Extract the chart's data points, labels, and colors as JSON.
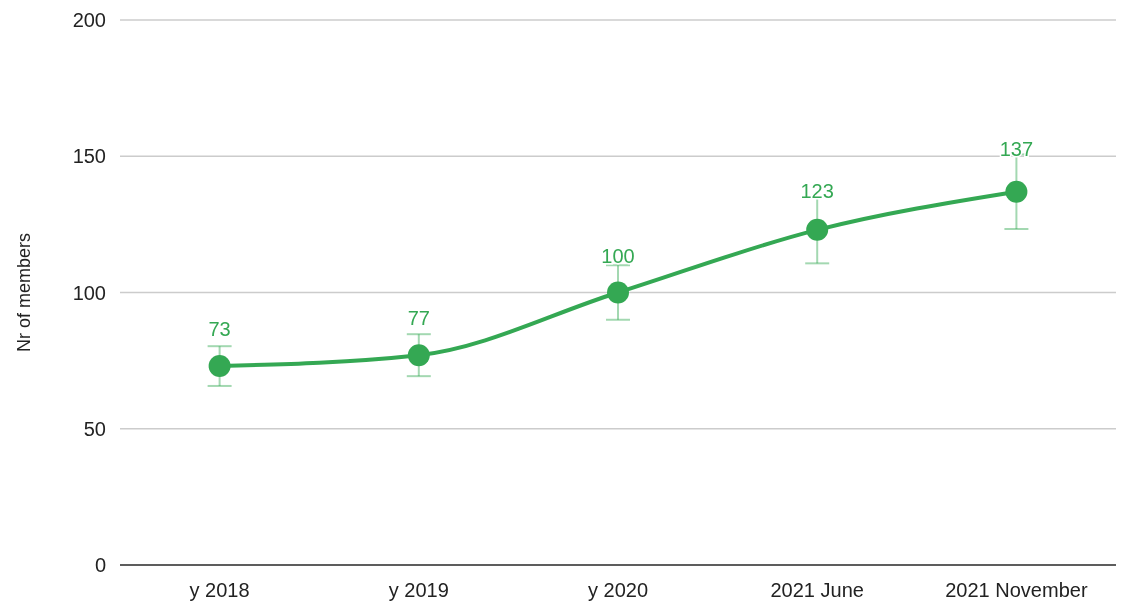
{
  "chart_data": {
    "type": "line",
    "ylabel": "Nr of members",
    "categories": [
      "y 2018",
      "y 2019",
      "y 2020",
      "2021 June",
      "2021 November"
    ],
    "series": [
      {
        "color": "#34a853",
        "values": [
          73,
          77,
          100,
          123,
          137
        ],
        "errors": [
          7.3,
          7.7,
          10,
          12.3,
          13.7
        ]
      }
    ],
    "ylim": [
      0,
      200
    ],
    "yticks": [
      0,
      50,
      100,
      150,
      200
    ],
    "grid": "y",
    "marker": "circle",
    "line_style": "solid",
    "data_labels": true
  }
}
